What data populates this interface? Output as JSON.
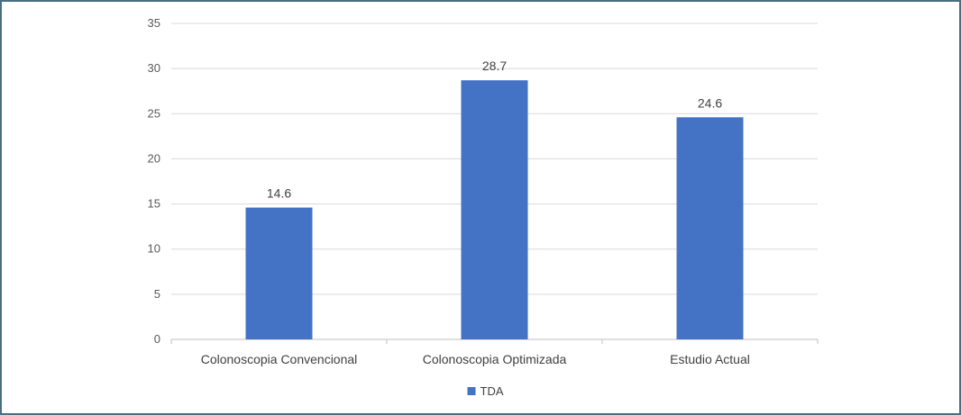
{
  "chart_data": {
    "type": "bar",
    "title": "",
    "xlabel": "",
    "ylabel": "",
    "categories": [
      "Colonoscopia Convencional",
      "Colonoscopia Optimizada",
      "Estudio Actual"
    ],
    "series": [
      {
        "name": "TDA",
        "values": [
          14.6,
          28.7,
          24.6
        ],
        "color": "#4472c4"
      }
    ],
    "ylim": [
      0,
      35
    ],
    "yticks": [
      0,
      5,
      10,
      15,
      20,
      25,
      30,
      35
    ],
    "data_labels": [
      "14.6",
      "28.7",
      "24.6"
    ],
    "grid": true,
    "legend_position": "bottom"
  }
}
